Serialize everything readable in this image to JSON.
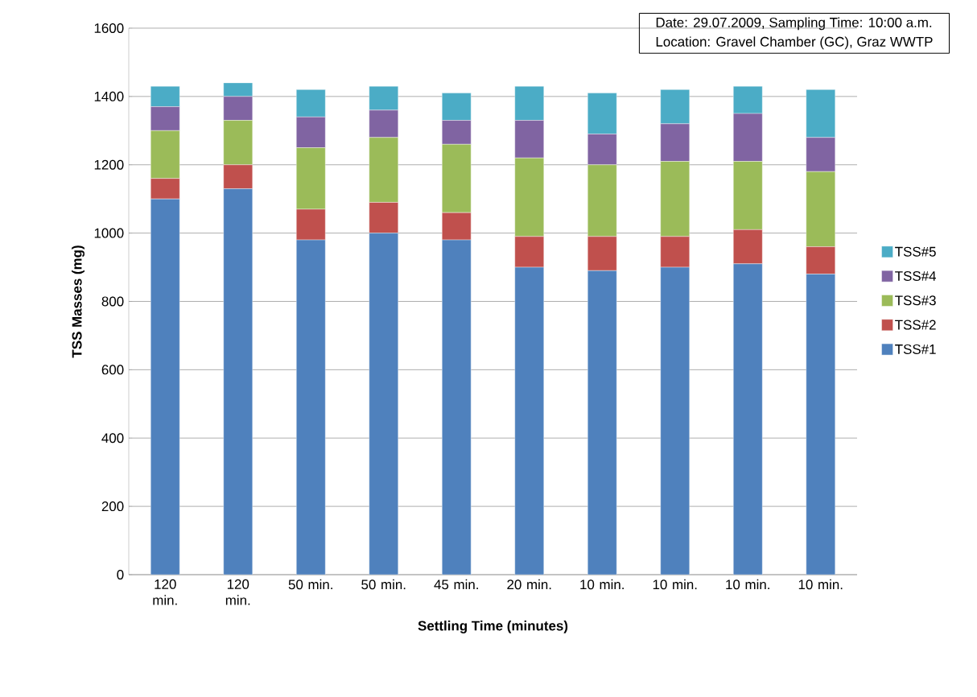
{
  "chart_data": {
    "type": "bar",
    "stacked": true,
    "xlabel": "Settling Time (minutes)",
    "ylabel": "TSS Masses (mg)",
    "annotations": [
      "Date: 29.07.2009, Sampling Time: 10:00 a.m.",
      "Location: Gravel Chamber (GC), Graz WWTP"
    ],
    "categories": [
      "120 min.",
      "120 min.",
      "50 min.",
      "50 min.",
      "45 min.",
      "20 min.",
      "10 min.",
      "10 min.",
      "10 min.",
      "10 min."
    ],
    "series": [
      {
        "name": "TSS#1",
        "color": "#4f81bd",
        "values": [
          1100,
          1130,
          980,
          1000,
          980,
          900,
          890,
          900,
          910,
          880
        ]
      },
      {
        "name": "TSS#2",
        "color": "#c0504d",
        "values": [
          60,
          70,
          90,
          90,
          80,
          90,
          100,
          90,
          100,
          80
        ]
      },
      {
        "name": "TSS#3",
        "color": "#9bbb59",
        "values": [
          140,
          130,
          180,
          190,
          200,
          230,
          210,
          220,
          200,
          220
        ]
      },
      {
        "name": "TSS#4",
        "color": "#8064a2",
        "values": [
          70,
          70,
          90,
          80,
          70,
          110,
          90,
          110,
          140,
          100
        ]
      },
      {
        "name": "TSS#5",
        "color": "#4bacc6",
        "values": [
          60,
          40,
          80,
          70,
          80,
          100,
          120,
          100,
          80,
          140
        ]
      }
    ],
    "ylim": [
      0,
      1600
    ],
    "yticks": [
      0,
      200,
      400,
      600,
      800,
      1000,
      1200,
      1400,
      1600
    ],
    "grid": "y",
    "legend": "right"
  }
}
